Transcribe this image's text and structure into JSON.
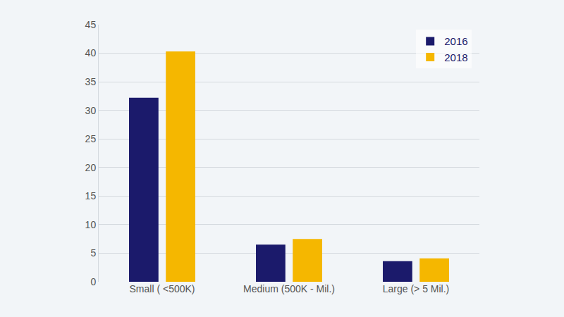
{
  "chart_data": {
    "type": "bar",
    "categories": [
      "Small ( <500K)",
      "Medium (500K - Mil.)",
      "Large (> 5 Mil.)"
    ],
    "series": [
      {
        "name": "2016",
        "color": "#1b1a6b",
        "values": [
          32.2,
          6.5,
          3.6
        ]
      },
      {
        "name": "2018",
        "color": "#f5b700",
        "values": [
          40.3,
          7.5,
          4.1
        ]
      }
    ],
    "ylim": [
      0,
      45
    ],
    "yticks": [
      0,
      5,
      10,
      15,
      20,
      25,
      30,
      35,
      40,
      45
    ],
    "grid": true,
    "legend": "top right"
  }
}
